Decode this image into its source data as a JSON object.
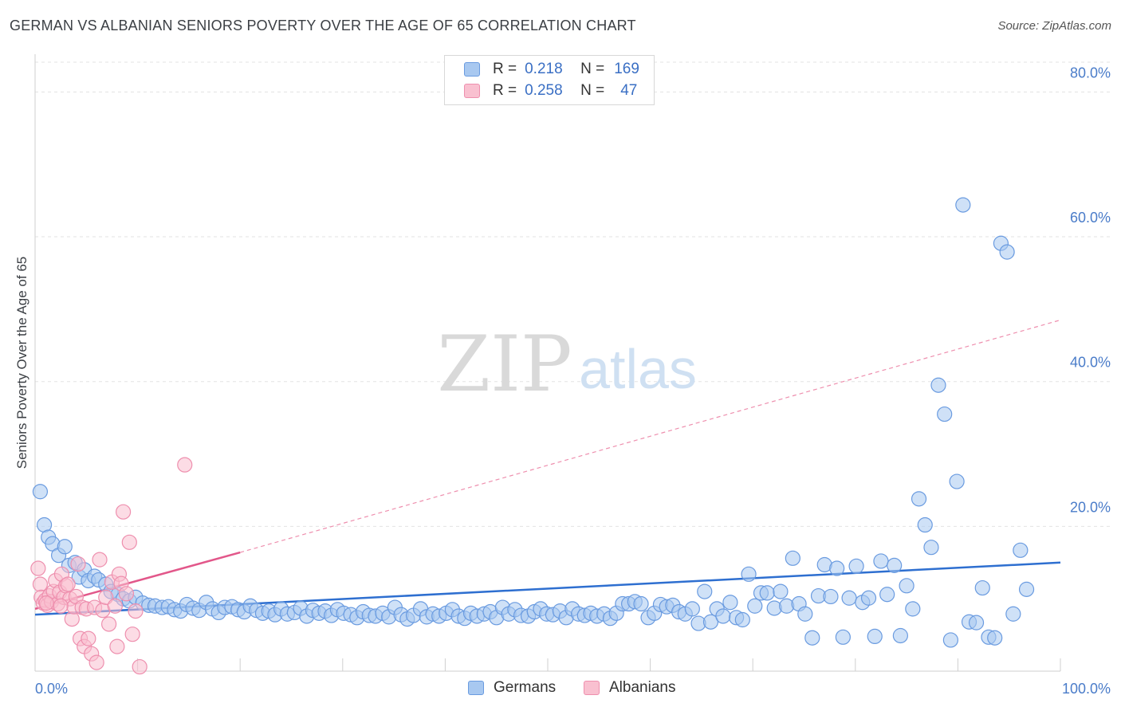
{
  "header": {
    "title": "GERMAN VS ALBANIAN SENIORS POVERTY OVER THE AGE OF 65 CORRELATION CHART",
    "source": "Source: ZipAtlas.com"
  },
  "watermark": {
    "zip": "ZIP",
    "atlas": "atlas"
  },
  "legend": {
    "r_label": "R =",
    "n_label": "N =",
    "germans": {
      "r": "0.218",
      "n": "169",
      "color": "#a8c8f0",
      "border": "#6a9be0"
    },
    "albanians": {
      "r": "0.258",
      "n": "47",
      "color": "#f9c0d0",
      "border": "#ee8fae"
    }
  },
  "bottom_legend": {
    "germans": "Germans",
    "albanians": "Albanians"
  },
  "chart_data": {
    "type": "scatter",
    "title": "GERMAN VS ALBANIAN SENIORS POVERTY OVER THE AGE OF 65 CORRELATION CHART",
    "xlabel": "",
    "ylabel": "Seniors Poverty Over the Age of 65",
    "xlim": [
      0,
      100
    ],
    "ylim": [
      0,
      85
    ],
    "y_ticks": [
      20,
      40,
      60,
      80
    ],
    "y_tick_labels": [
      "20.0%",
      "40.0%",
      "60.0%",
      "80.0%"
    ],
    "x_tick_labels": [
      "0.0%",
      "100.0%"
    ],
    "grid": true,
    "series": [
      {
        "name": "Germans",
        "color": "#a8c8f0",
        "stroke": "#6a9be0",
        "trend": {
          "x0": 0,
          "y0": 7.8,
          "x1": 100,
          "y1": 15.0,
          "color": "#2e6fd0"
        },
        "points": [
          [
            0.5,
            24.8
          ],
          [
            0.9,
            20.2
          ],
          [
            1.3,
            18.5
          ],
          [
            1.7,
            17.6
          ],
          [
            2.3,
            16.0
          ],
          [
            2.9,
            17.2
          ],
          [
            3.3,
            14.6
          ],
          [
            3.9,
            15.0
          ],
          [
            4.3,
            13.0
          ],
          [
            4.8,
            14.0
          ],
          [
            5.2,
            12.5
          ],
          [
            5.8,
            13.1
          ],
          [
            6.2,
            12.6
          ],
          [
            6.9,
            12.0
          ],
          [
            7.4,
            11.0
          ],
          [
            8.1,
            10.6
          ],
          [
            8.6,
            10.0
          ],
          [
            9.2,
            9.7
          ],
          [
            9.8,
            10.2
          ],
          [
            10.5,
            9.4
          ],
          [
            11.1,
            9.1
          ],
          [
            11.7,
            9.0
          ],
          [
            12.4,
            8.8
          ],
          [
            13.0,
            8.9
          ],
          [
            13.6,
            8.5
          ],
          [
            14.2,
            8.3
          ],
          [
            14.8,
            9.2
          ],
          [
            15.4,
            8.7
          ],
          [
            16.0,
            8.4
          ],
          [
            16.7,
            9.5
          ],
          [
            17.3,
            8.6
          ],
          [
            17.9,
            8.1
          ],
          [
            18.5,
            8.8
          ],
          [
            19.2,
            8.9
          ],
          [
            19.8,
            8.5
          ],
          [
            20.4,
            8.2
          ],
          [
            21.0,
            9.0
          ],
          [
            21.6,
            8.4
          ],
          [
            22.2,
            8.0
          ],
          [
            22.8,
            8.3
          ],
          [
            23.4,
            7.8
          ],
          [
            24.0,
            8.6
          ],
          [
            24.6,
            7.9
          ],
          [
            25.3,
            8.1
          ],
          [
            25.9,
            8.7
          ],
          [
            26.5,
            7.6
          ],
          [
            27.1,
            8.4
          ],
          [
            27.7,
            8.0
          ],
          [
            28.3,
            8.3
          ],
          [
            28.9,
            7.7
          ],
          [
            29.5,
            8.5
          ],
          [
            30.1,
            8.0
          ],
          [
            30.8,
            7.8
          ],
          [
            31.4,
            7.4
          ],
          [
            32.0,
            8.2
          ],
          [
            32.6,
            7.7
          ],
          [
            33.2,
            7.6
          ],
          [
            33.9,
            8.0
          ],
          [
            34.5,
            7.5
          ],
          [
            35.1,
            8.8
          ],
          [
            35.7,
            7.8
          ],
          [
            36.3,
            7.2
          ],
          [
            36.9,
            7.7
          ],
          [
            37.6,
            8.6
          ],
          [
            38.2,
            7.5
          ],
          [
            38.8,
            7.9
          ],
          [
            39.4,
            7.6
          ],
          [
            40.1,
            8.0
          ],
          [
            40.7,
            8.5
          ],
          [
            41.3,
            7.6
          ],
          [
            41.9,
            7.3
          ],
          [
            42.5,
            8.0
          ],
          [
            43.1,
            7.6
          ],
          [
            43.8,
            7.9
          ],
          [
            44.4,
            8.2
          ],
          [
            45.0,
            7.4
          ],
          [
            45.6,
            8.8
          ],
          [
            46.2,
            7.9
          ],
          [
            46.8,
            8.5
          ],
          [
            47.4,
            7.7
          ],
          [
            48.1,
            7.6
          ],
          [
            48.7,
            8.2
          ],
          [
            49.3,
            8.6
          ],
          [
            49.9,
            7.9
          ],
          [
            50.5,
            7.8
          ],
          [
            51.2,
            8.3
          ],
          [
            51.8,
            7.4
          ],
          [
            52.4,
            8.6
          ],
          [
            53.0,
            7.9
          ],
          [
            53.6,
            7.7
          ],
          [
            54.2,
            8.0
          ],
          [
            54.8,
            7.6
          ],
          [
            55.5,
            7.9
          ],
          [
            56.1,
            7.3
          ],
          [
            56.7,
            8.0
          ],
          [
            57.3,
            9.3
          ],
          [
            57.9,
            9.3
          ],
          [
            58.5,
            9.6
          ],
          [
            59.1,
            9.3
          ],
          [
            59.8,
            7.4
          ],
          [
            60.4,
            8.0
          ],
          [
            61.0,
            9.2
          ],
          [
            61.6,
            8.9
          ],
          [
            62.2,
            9.1
          ],
          [
            62.8,
            8.2
          ],
          [
            63.4,
            7.9
          ],
          [
            64.1,
            8.6
          ],
          [
            64.7,
            6.6
          ],
          [
            65.3,
            11.0
          ],
          [
            65.9,
            6.8
          ],
          [
            66.5,
            8.6
          ],
          [
            67.1,
            7.6
          ],
          [
            67.8,
            9.5
          ],
          [
            68.4,
            7.4
          ],
          [
            69.0,
            7.1
          ],
          [
            69.6,
            13.4
          ],
          [
            70.2,
            9.0
          ],
          [
            70.8,
            10.8
          ],
          [
            71.4,
            10.8
          ],
          [
            72.1,
            8.7
          ],
          [
            72.7,
            11.0
          ],
          [
            73.3,
            9.0
          ],
          [
            73.9,
            15.6
          ],
          [
            74.5,
            9.3
          ],
          [
            75.1,
            7.9
          ],
          [
            75.8,
            4.6
          ],
          [
            76.4,
            10.4
          ],
          [
            77.0,
            14.7
          ],
          [
            77.6,
            10.3
          ],
          [
            78.2,
            14.2
          ],
          [
            78.8,
            4.7
          ],
          [
            79.4,
            10.1
          ],
          [
            80.1,
            14.5
          ],
          [
            80.7,
            9.5
          ],
          [
            81.3,
            10.1
          ],
          [
            81.9,
            4.8
          ],
          [
            82.5,
            15.2
          ],
          [
            83.1,
            10.6
          ],
          [
            83.8,
            14.6
          ],
          [
            84.4,
            4.9
          ],
          [
            85.0,
            11.8
          ],
          [
            85.6,
            8.6
          ],
          [
            86.2,
            23.8
          ],
          [
            86.8,
            20.2
          ],
          [
            87.4,
            17.1
          ],
          [
            88.1,
            39.5
          ],
          [
            88.7,
            35.5
          ],
          [
            89.3,
            4.3
          ],
          [
            89.9,
            26.2
          ],
          [
            90.5,
            64.4
          ],
          [
            91.1,
            6.8
          ],
          [
            91.8,
            6.7
          ],
          [
            92.4,
            11.5
          ],
          [
            93.0,
            4.7
          ],
          [
            93.6,
            4.6
          ],
          [
            94.2,
            59.1
          ],
          [
            94.8,
            57.9
          ],
          [
            95.4,
            7.9
          ],
          [
            96.1,
            16.7
          ],
          [
            96.7,
            11.3
          ]
        ]
      },
      {
        "name": "Albanians",
        "color": "#f9c0d0",
        "stroke": "#ee8fae",
        "trend": {
          "x0": 0,
          "y0": 8.6,
          "x1": 20,
          "y1": 16.4,
          "color": "#e2578a"
        },
        "trend_extension": {
          "x0": 20,
          "y0": 16.4,
          "x1": 100,
          "y1": 48.5,
          "color": "#ee8fae"
        },
        "points": [
          [
            0.3,
            14.2
          ],
          [
            0.5,
            12.0
          ],
          [
            0.6,
            10.2
          ],
          [
            0.8,
            9.4
          ],
          [
            1.0,
            9.8
          ],
          [
            1.2,
            9.1
          ],
          [
            1.4,
            10.4
          ],
          [
            1.6,
            9.6
          ],
          [
            1.8,
            11.0
          ],
          [
            2.0,
            12.5
          ],
          [
            2.2,
            9.3
          ],
          [
            2.4,
            10.9
          ],
          [
            2.6,
            13.4
          ],
          [
            2.8,
            10.2
          ],
          [
            3.0,
            11.8
          ],
          [
            3.2,
            12.0
          ],
          [
            3.4,
            10.0
          ],
          [
            3.6,
            7.2
          ],
          [
            3.8,
            8.9
          ],
          [
            4.0,
            10.3
          ],
          [
            4.2,
            14.8
          ],
          [
            4.4,
            4.5
          ],
          [
            4.6,
            8.8
          ],
          [
            4.8,
            3.4
          ],
          [
            5.0,
            8.6
          ],
          [
            5.2,
            4.5
          ],
          [
            5.5,
            2.4
          ],
          [
            5.8,
            8.8
          ],
          [
            6.0,
            1.2
          ],
          [
            6.3,
            15.4
          ],
          [
            6.6,
            8.4
          ],
          [
            6.9,
            10.2
          ],
          [
            7.2,
            6.5
          ],
          [
            7.5,
            12.3
          ],
          [
            7.8,
            9.0
          ],
          [
            8.0,
            3.4
          ],
          [
            8.2,
            13.4
          ],
          [
            8.4,
            12.1
          ],
          [
            8.6,
            22.0
          ],
          [
            8.9,
            10.7
          ],
          [
            9.2,
            17.8
          ],
          [
            9.5,
            5.1
          ],
          [
            9.8,
            8.3
          ],
          [
            10.2,
            0.6
          ],
          [
            14.6,
            28.5
          ],
          [
            1.1,
            9.4
          ],
          [
            2.5,
            9.0
          ]
        ]
      }
    ]
  }
}
